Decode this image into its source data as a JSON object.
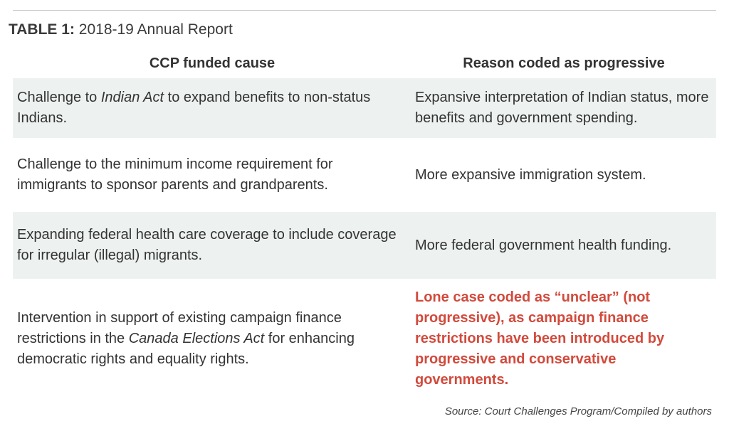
{
  "title": {
    "label": "TABLE 1:",
    "text": "2018-19 Annual Report"
  },
  "table": {
    "headers": {
      "col1": "CCP funded cause",
      "col2": "Reason coded as progressive"
    },
    "rows": [
      {
        "cause_pre": "Challenge to ",
        "cause_em": "Indian Act",
        "cause_post": " to expand benefits to non-status Indians.",
        "reason": "Expansive interpretation of Indian status, more benefits and government spending."
      },
      {
        "cause_pre": "Challenge to the minimum income requirement for immigrants to sponsor parents and grandparents.",
        "cause_em": "",
        "cause_post": "",
        "reason": "More expansive immigration system."
      },
      {
        "cause_pre": "Expanding federal health care coverage to include coverage for irregular (illegal) migrants.",
        "cause_em": "",
        "cause_post": "",
        "reason": "More federal government health funding."
      },
      {
        "cause_pre": "Intervention in support of existing campaign finance restrictions in the ",
        "cause_em": "Canada Elections Act",
        "cause_post": " for enhancing democratic rights and equality rights.",
        "reason": "Lone case coded as “unclear” (not progressive), as campaign finance restrictions have been introduced by progressive and conservative governments."
      }
    ]
  },
  "source": "Source: Court Challenges Program/Compiled by authors",
  "colors": {
    "shade": "#edf1f0",
    "highlight": "#d24a3c",
    "text": "#333333"
  }
}
